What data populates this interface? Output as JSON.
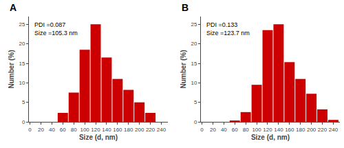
{
  "chart_data": [
    {
      "type": "bar",
      "title": "A",
      "annotations": [
        "PDI =0.087",
        "Size =105.3 nm"
      ],
      "x": [
        60,
        80,
        100,
        120,
        140,
        160,
        180,
        200,
        220
      ],
      "values": [
        2.3,
        7.5,
        18.5,
        25.0,
        16.5,
        11.0,
        8.2,
        5.0,
        2.3
      ],
      "xlabel": "Size (d, nm)",
      "ylabel": "Number (%)",
      "xlim": [
        -2,
        252
      ],
      "ylim": [
        0,
        27
      ],
      "xticks": [
        0,
        20,
        40,
        60,
        80,
        100,
        120,
        140,
        160,
        180,
        200,
        220,
        240
      ],
      "yticks": [
        0,
        5,
        10,
        15,
        20,
        25
      ],
      "color": "#CC0000",
      "grid": false
    },
    {
      "type": "bar",
      "title": "B",
      "annotations": [
        "PDI =0.133",
        "Size =123.7 nm"
      ],
      "x": [
        60,
        80,
        100,
        120,
        140,
        160,
        180,
        200,
        220,
        240
      ],
      "values": [
        0.3,
        2.5,
        9.5,
        23.5,
        25.0,
        15.3,
        11.0,
        7.2,
        3.2,
        0.5
      ],
      "xlabel": "Size (d, nm)",
      "ylabel": "Number (%)",
      "xlim": [
        -2,
        252
      ],
      "ylim": [
        0,
        27
      ],
      "xticks": [
        0,
        20,
        40,
        60,
        80,
        100,
        120,
        140,
        160,
        180,
        200,
        220,
        240
      ],
      "yticks": [
        0,
        5,
        10,
        15,
        20,
        25
      ],
      "color": "#CC0000",
      "grid": false
    }
  ]
}
